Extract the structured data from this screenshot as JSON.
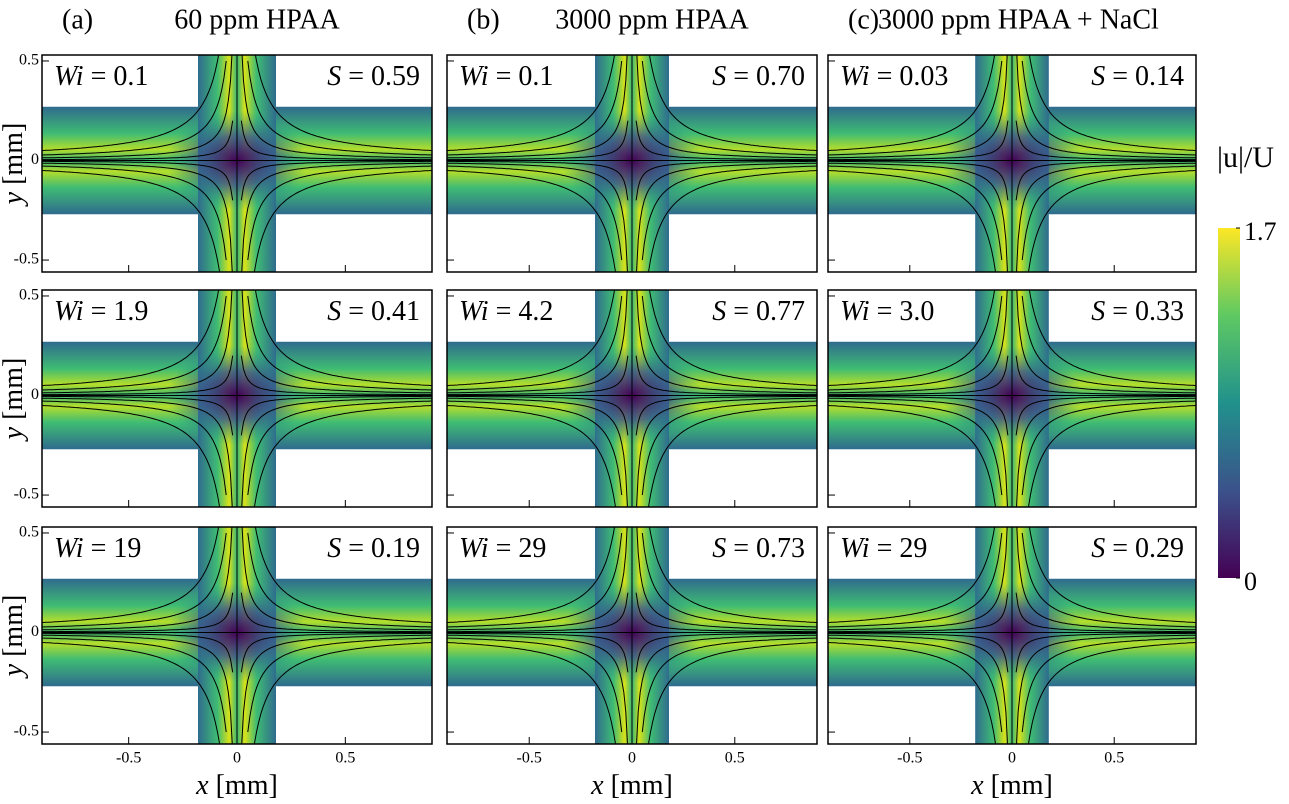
{
  "columns": [
    {
      "tag": "(a)",
      "title": "60 ppm HPAA"
    },
    {
      "tag": "(b)",
      "title": "3000 ppm HPAA"
    },
    {
      "tag": "(c)",
      "title": "3000 ppm HPAA + NaCl"
    }
  ],
  "wi_symbol": "Wi",
  "s_symbol": "S",
  "equals": "=",
  "panels": [
    [
      {
        "wi": "0.1",
        "s": "0.59"
      },
      {
        "wi": "0.1",
        "s": "0.70"
      },
      {
        "wi": "0.03",
        "s": "0.14"
      }
    ],
    [
      {
        "wi": "1.9",
        "s": "0.41"
      },
      {
        "wi": "4.2",
        "s": "0.77"
      },
      {
        "wi": "3.0",
        "s": "0.33"
      }
    ],
    [
      {
        "wi": "19",
        "s": "0.19"
      },
      {
        "wi": "29",
        "s": "0.73"
      },
      {
        "wi": "29",
        "s": "0.29"
      }
    ]
  ],
  "x_axis": {
    "symbol": "x",
    "unit": "[mm]",
    "lim": [
      -0.9,
      0.9
    ],
    "ticks": [
      -0.5,
      0,
      0.5
    ]
  },
  "y_axis": {
    "symbol": "y",
    "unit": "[mm]",
    "lim": [
      -0.56,
      0.53
    ],
    "ticks": [
      0.5,
      0,
      -0.5
    ]
  },
  "colorbar": {
    "label": "|u|/U",
    "lim": [
      0,
      1.7
    ],
    "ticks": [
      1.7,
      0
    ]
  }
}
